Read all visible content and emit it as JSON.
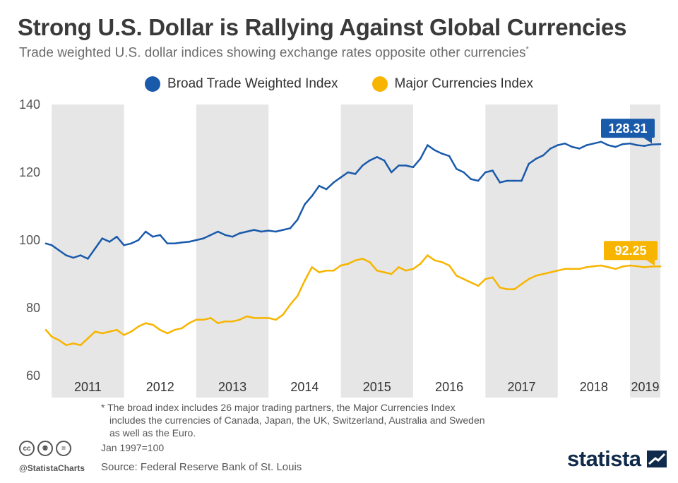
{
  "title": "Strong U.S. Dollar is Rallying Against Global Currencies",
  "subtitle": "Trade weighted U.S. dollar indices showing exchange rates opposite other currencies",
  "subtitle_marker": "*",
  "colors": {
    "broad": "#1a5aab",
    "major": "#f7b500",
    "band": "#e6e6e6",
    "axis_text": "#555555"
  },
  "chart_data": {
    "type": "line",
    "title": "Strong U.S. Dollar is Rallying Against Global Currencies",
    "ylim": [
      60,
      140
    ],
    "yticks": [
      60,
      80,
      100,
      120,
      140
    ],
    "year_labels": [
      "2011",
      "2012",
      "2013",
      "2014",
      "2015",
      "2016",
      "2017",
      "2018",
      "2019"
    ],
    "x_range": [
      2010.92,
      2019.42
    ],
    "grid": false,
    "legend_position": "top-center",
    "series": [
      {
        "name": "Broad Trade Weighted Index",
        "color": "#1a5aab",
        "end_label": "128.31",
        "x": [
          2010.92,
          2011.0,
          2011.1,
          2011.2,
          2011.3,
          2011.4,
          2011.5,
          2011.6,
          2011.7,
          2011.8,
          2011.9,
          2012.0,
          2012.1,
          2012.2,
          2012.3,
          2012.4,
          2012.5,
          2012.6,
          2012.7,
          2012.8,
          2012.9,
          2013.0,
          2013.1,
          2013.2,
          2013.3,
          2013.4,
          2013.5,
          2013.6,
          2013.7,
          2013.8,
          2013.9,
          2014.0,
          2014.1,
          2014.2,
          2014.3,
          2014.4,
          2014.5,
          2014.6,
          2014.7,
          2014.8,
          2014.9,
          2015.0,
          2015.1,
          2015.2,
          2015.3,
          2015.4,
          2015.5,
          2015.6,
          2015.7,
          2015.8,
          2015.9,
          2016.0,
          2016.1,
          2016.2,
          2016.3,
          2016.4,
          2016.5,
          2016.6,
          2016.7,
          2016.8,
          2016.9,
          2017.0,
          2017.1,
          2017.2,
          2017.3,
          2017.4,
          2017.5,
          2017.6,
          2017.7,
          2017.8,
          2017.9,
          2018.0,
          2018.1,
          2018.2,
          2018.3,
          2018.4,
          2018.5,
          2018.6,
          2018.7,
          2018.8,
          2018.9,
          2019.0,
          2019.1,
          2019.2,
          2019.3,
          2019.42
        ],
        "values": [
          99,
          98.5,
          97,
          95.5,
          94.8,
          95.5,
          94.5,
          97.5,
          100.5,
          99.5,
          101,
          98.5,
          99,
          100,
          102.5,
          101,
          101.5,
          99,
          99,
          99.3,
          99.5,
          100,
          100.5,
          101.5,
          102.5,
          101.5,
          101,
          102,
          102.5,
          103,
          102.5,
          102.8,
          102.5,
          103,
          103.5,
          106,
          110.5,
          113,
          116,
          115,
          117,
          118.5,
          120,
          119.5,
          122,
          123.5,
          124.5,
          123.5,
          120,
          122,
          122,
          121.5,
          124,
          128,
          126.5,
          125.5,
          124.8,
          121,
          120,
          118,
          117.5,
          120,
          120.5,
          117,
          117.5,
          117.5,
          117.5,
          122.5,
          124,
          125,
          127,
          128,
          128.5,
          127.5,
          127,
          128,
          128.5,
          129,
          128,
          127.5,
          128.31,
          128.5,
          128,
          127.8,
          128.2,
          128.31
        ]
      },
      {
        "name": "Major Currencies Index",
        "color": "#f7b500",
        "end_label": "92.25",
        "x": [
          2010.92,
          2011.0,
          2011.1,
          2011.2,
          2011.3,
          2011.4,
          2011.5,
          2011.6,
          2011.7,
          2011.8,
          2011.9,
          2012.0,
          2012.1,
          2012.2,
          2012.3,
          2012.4,
          2012.5,
          2012.6,
          2012.7,
          2012.8,
          2012.9,
          2013.0,
          2013.1,
          2013.2,
          2013.3,
          2013.4,
          2013.5,
          2013.6,
          2013.7,
          2013.8,
          2013.9,
          2014.0,
          2014.1,
          2014.2,
          2014.3,
          2014.4,
          2014.5,
          2014.6,
          2014.7,
          2014.8,
          2014.9,
          2015.0,
          2015.1,
          2015.2,
          2015.3,
          2015.4,
          2015.5,
          2015.6,
          2015.7,
          2015.8,
          2015.9,
          2016.0,
          2016.1,
          2016.2,
          2016.3,
          2016.4,
          2016.5,
          2016.6,
          2016.7,
          2016.8,
          2016.9,
          2017.0,
          2017.1,
          2017.2,
          2017.3,
          2017.4,
          2017.5,
          2017.6,
          2017.7,
          2017.8,
          2017.9,
          2018.0,
          2018.1,
          2018.2,
          2018.3,
          2018.4,
          2018.5,
          2018.6,
          2018.7,
          2018.8,
          2018.9,
          2019.0,
          2019.1,
          2019.2,
          2019.3,
          2019.42
        ],
        "values": [
          73.5,
          71.5,
          70.5,
          69,
          69.5,
          69,
          71,
          73,
          72.5,
          73,
          73.5,
          72,
          73,
          74.5,
          75.5,
          75,
          73.5,
          72.5,
          73.5,
          74,
          75.5,
          76.5,
          76.5,
          77,
          75.5,
          76,
          76,
          76.5,
          77.5,
          77,
          77,
          77,
          76.5,
          78,
          81,
          83.5,
          88,
          92,
          90.5,
          91,
          91,
          92.5,
          93,
          94,
          94.5,
          93.5,
          91,
          90.5,
          90,
          92,
          91,
          91.5,
          93,
          95.5,
          94,
          93.5,
          92.5,
          89.5,
          88.5,
          87.5,
          86.5,
          88.5,
          89,
          86,
          85.5,
          85.5,
          87,
          88.5,
          89.5,
          90,
          90.5,
          91,
          91.5,
          91.5,
          91.5,
          92,
          92.3,
          92.5,
          92,
          91.5,
          92.2,
          92.5,
          92.3,
          92,
          92.2,
          92.25
        ]
      }
    ]
  },
  "footnote": {
    "line1": "* The broad index includes 26 major trading partners, the Major Currencies Index",
    "line2": "includes the currencies of Canada, Japan, the UK, Switzerland, Australia and Sweden",
    "line3": "as well as the Euro."
  },
  "baseline_note": "Jan 1997=100",
  "source": "Source: Federal Reserve Bank of St. Louis",
  "handle": "@StatistaCharts",
  "brand": "statista",
  "license_icons": [
    "cc-icon",
    "attribution-icon",
    "no-derivatives-icon"
  ],
  "license_glyphs": [
    "cc",
    "⚉",
    "="
  ]
}
